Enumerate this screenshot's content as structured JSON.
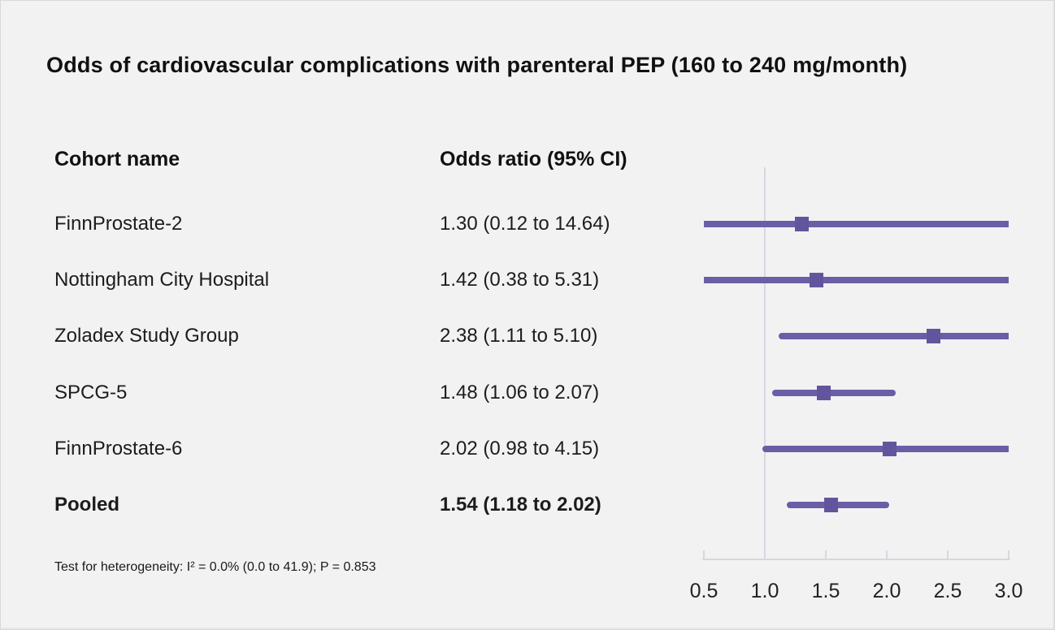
{
  "title": "Odds of cardiovascular complications with parenteral PEP (160 to 240 mg/month)",
  "table": {
    "cohort_header": "Cohort name",
    "or_header": "Odds ratio (95% CI)"
  },
  "footnote": "Test for heterogeneity: I² = 0.0% (0.0 to 41.9); P = 0.853",
  "colors": {
    "background": "#f2f2f2",
    "ci_line": "#6b5ea6",
    "marker": "#63559d",
    "axis": "#d4d8e0",
    "text": "#1c1c1c"
  },
  "chart_data": {
    "type": "forest",
    "title": "Odds of cardiovascular complications with parenteral PEP (160 to 240 mg/month)",
    "x_axis": {
      "min": 0.5,
      "max": 3.0,
      "tick_step": 0.5,
      "tick_labels": [
        "0.5",
        "1.0",
        "1.5",
        "2.0",
        "2.5",
        "3.0"
      ],
      "reference_line": 1.0,
      "grid": false
    },
    "rows": [
      {
        "label": "FinnProstate-2",
        "or_text": "1.30 (0.12 to 14.64)",
        "or": 1.3,
        "ci_low": 0.12,
        "ci_high": 14.64,
        "bold": false
      },
      {
        "label": "Nottingham City Hospital",
        "or_text": "1.42 (0.38 to 5.31)",
        "or": 1.42,
        "ci_low": 0.38,
        "ci_high": 5.31,
        "bold": false
      },
      {
        "label": "Zoladex Study Group",
        "or_text": "2.38 (1.11 to 5.10)",
        "or": 2.38,
        "ci_low": 1.11,
        "ci_high": 5.1,
        "bold": false
      },
      {
        "label": "SPCG-5",
        "or_text": "1.48 (1.06 to 2.07)",
        "or": 1.48,
        "ci_low": 1.06,
        "ci_high": 2.07,
        "bold": false
      },
      {
        "label": "FinnProstate-6",
        "or_text": "2.02 (0.98 to 4.15)",
        "or": 2.02,
        "ci_low": 0.98,
        "ci_high": 4.15,
        "bold": false
      },
      {
        "label": "Pooled",
        "or_text": "1.54 (1.18 to 2.02)",
        "or": 1.54,
        "ci_low": 1.18,
        "ci_high": 2.02,
        "bold": true
      }
    ]
  }
}
